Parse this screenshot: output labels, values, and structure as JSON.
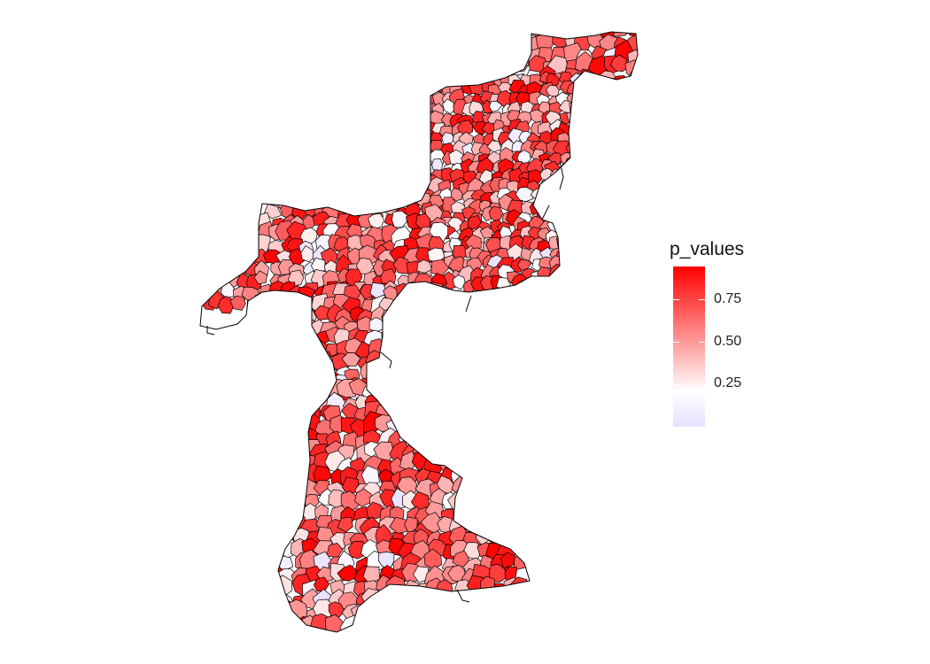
{
  "legend": {
    "title": "p_values",
    "ticks": [
      {
        "value": 0.25,
        "label": "0.25"
      },
      {
        "value": 0.5,
        "label": "0.50"
      },
      {
        "value": 0.75,
        "label": "0.75"
      }
    ],
    "range": [
      0.0,
      1.0
    ],
    "low_color": "#e8e0ff",
    "mid_color": "#ffffff",
    "high_color": "#ff0000"
  },
  "map": {
    "cell_outline_color": "#000000"
  }
}
